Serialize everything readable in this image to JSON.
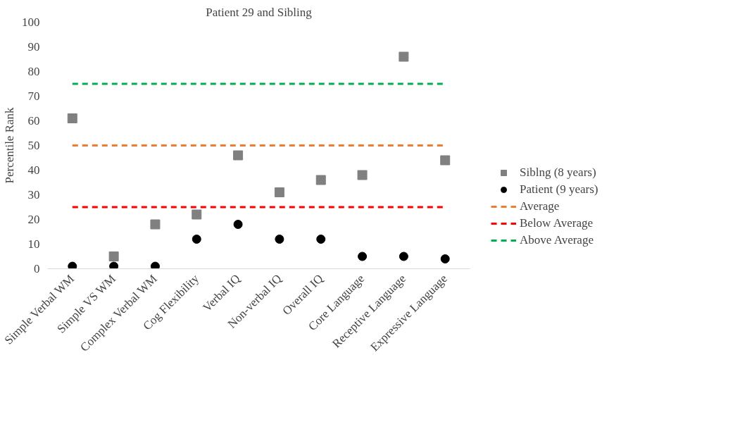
{
  "chart_data": {
    "type": "scatter",
    "title": "Patient 29 and Sibling",
    "ylabel": "Percentile Rank",
    "categories": [
      "Simple Verbal WM",
      "Simple VS WM",
      "Complex Verbal WM",
      "Cog Flexibility",
      "Verbal IQ",
      "Non-verbal IQ",
      "Overall IQ",
      "Core Language",
      "Receptive Language",
      "Expressive Language"
    ],
    "series": [
      {
        "name": "Siblng (8 years)",
        "color": "#808080",
        "marker": "square",
        "values": [
          61,
          5,
          18,
          22,
          46,
          31,
          36,
          38,
          86,
          44
        ]
      },
      {
        "name": "Patient (9 years)",
        "color": "#000000",
        "marker": "circle",
        "values": [
          1,
          1,
          1,
          12,
          18,
          12,
          12,
          5,
          5,
          4
        ]
      }
    ],
    "ref_lines": [
      {
        "axis": "y",
        "value": 50,
        "label": "Average",
        "color": "#ed7d31",
        "line_style": "dashed"
      },
      {
        "axis": "y",
        "value": 25,
        "label": "Below Average",
        "color": "#ff0000",
        "line_style": "dashed"
      },
      {
        "axis": "y",
        "value": 75,
        "label": "Above Average",
        "color": "#00b050",
        "line_style": "dashed"
      }
    ],
    "ylim": [
      0,
      100
    ],
    "yticks": [
      0,
      10,
      20,
      30,
      40,
      50,
      60,
      70,
      80,
      90,
      100
    ],
    "grid": false,
    "legend": "right"
  }
}
